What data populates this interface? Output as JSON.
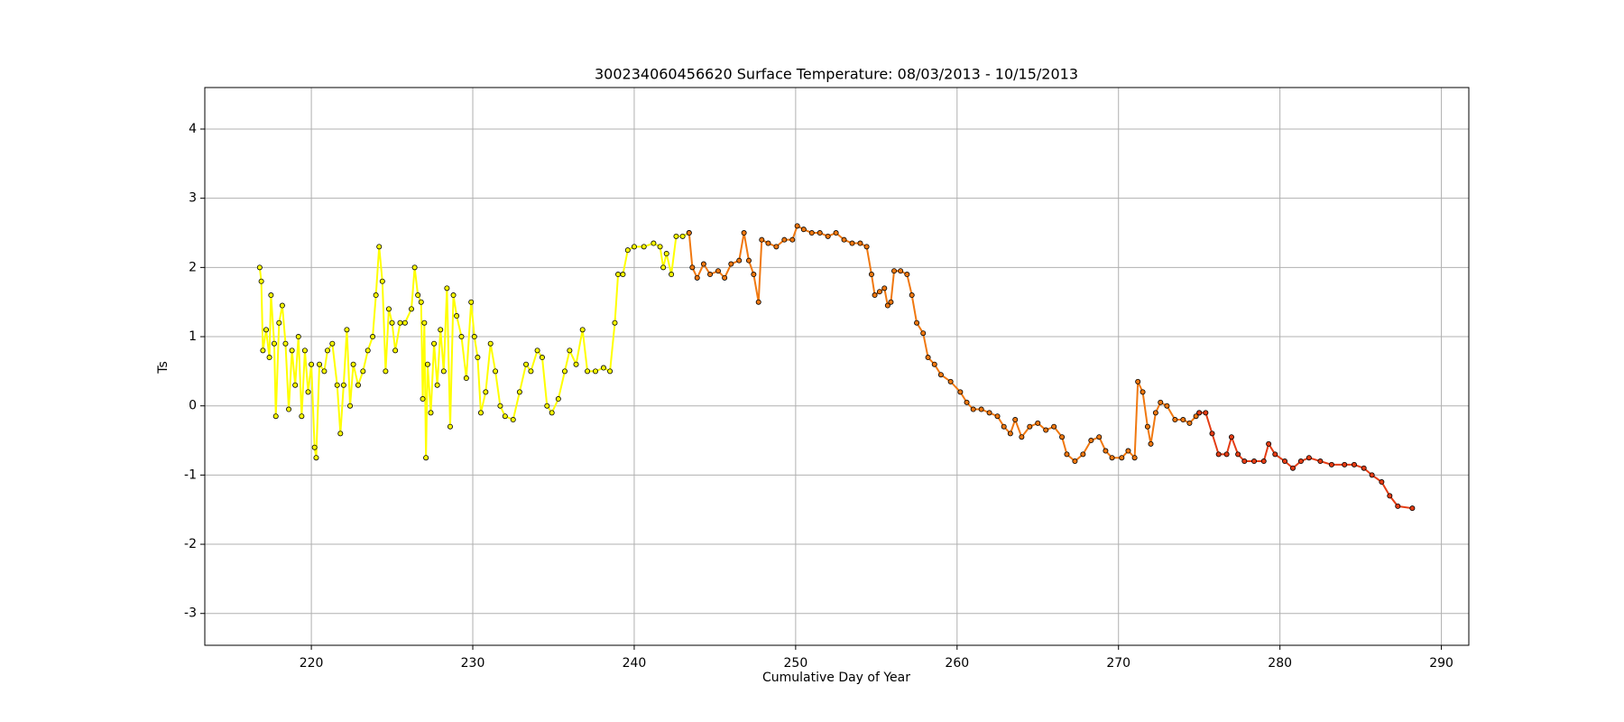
{
  "chart_data": {
    "type": "line",
    "title": "300234060456620 Surface Temperature: 08/03/2013 - 10/15/2013",
    "xlabel": "Cumulative Day of Year",
    "ylabel": "Ts",
    "xlim": [
      213.4,
      291.7
    ],
    "ylim": [
      -3.46,
      4.6
    ],
    "xticks": [
      220,
      230,
      240,
      250,
      260,
      270,
      280,
      290
    ],
    "yticks": [
      -3,
      -2,
      -1,
      0,
      1,
      2,
      3,
      4
    ],
    "grid": true,
    "markers": true,
    "series": [
      {
        "color": "#ffff00",
        "x": [
          216.8,
          216.9,
          217.0,
          217.2,
          217.4,
          217.5,
          217.7,
          217.8,
          218.0,
          218.2,
          218.4,
          218.6,
          218.8,
          219.0,
          219.2,
          219.4,
          219.6,
          219.8,
          220.0,
          220.2,
          220.3,
          220.5,
          220.8,
          221.0,
          221.3,
          221.6,
          221.8,
          222.0,
          222.2,
          222.4,
          222.6,
          222.9,
          223.2,
          223.5,
          223.8,
          224.0,
          224.2,
          224.4,
          224.6,
          224.8,
          225.0,
          225.2,
          225.5,
          225.8,
          226.2,
          226.4,
          226.6,
          226.8,
          226.9,
          227.0,
          227.1,
          227.2,
          227.4,
          227.6,
          227.8,
          228.0,
          228.2,
          228.4,
          228.6,
          228.8,
          229.0,
          229.3,
          229.6,
          229.9,
          230.1,
          230.3,
          230.5,
          230.8,
          231.1,
          231.4,
          231.7,
          232.0,
          232.5,
          232.9,
          233.3,
          233.6,
          234.0,
          234.3,
          234.6,
          234.9,
          235.3,
          235.7,
          236.0,
          236.4,
          236.8,
          237.1,
          237.6,
          238.1,
          238.5,
          238.8,
          239.0,
          239.3,
          239.6,
          240.0,
          240.6,
          241.2,
          241.6,
          241.8,
          242.0,
          242.3,
          242.6,
          243.0,
          243.4
        ],
        "values": [
          2.0,
          1.8,
          0.8,
          1.1,
          0.7,
          1.6,
          0.9,
          -0.15,
          1.2,
          1.45,
          0.9,
          -0.05,
          0.8,
          0.3,
          1.0,
          -0.15,
          0.8,
          0.2,
          0.6,
          -0.6,
          -0.75,
          0.6,
          0.5,
          0.8,
          0.9,
          0.3,
          -0.4,
          0.3,
          1.1,
          0.0,
          0.6,
          0.3,
          0.5,
          0.8,
          1.0,
          1.6,
          2.3,
          1.8,
          0.5,
          1.4,
          1.2,
          0.8,
          1.2,
          1.2,
          1.4,
          2.0,
          1.6,
          1.5,
          0.1,
          1.2,
          -0.75,
          0.6,
          -0.1,
          0.9,
          0.3,
          1.1,
          0.5,
          1.7,
          -0.3,
          1.6,
          1.3,
          1.0,
          0.4,
          1.5,
          1.0,
          0.7,
          -0.1,
          0.2,
          0.9,
          0.5,
          0.0,
          -0.15,
          -0.2,
          0.2,
          0.6,
          0.5,
          0.8,
          0.7,
          0.0,
          -0.1,
          0.1,
          0.5,
          0.8,
          0.6,
          1.1,
          0.5,
          0.5,
          0.55,
          0.5,
          1.2,
          1.9,
          1.9,
          2.25,
          2.3,
          2.3,
          2.35,
          2.3,
          2.0,
          2.2,
          1.9,
          2.45,
          2.45,
          2.5
        ]
      },
      {
        "color": "#f07810",
        "x": [
          243.4,
          243.6,
          243.9,
          244.3,
          244.7,
          245.2,
          245.6,
          246.0,
          246.5,
          246.8,
          247.1,
          247.4,
          247.7,
          247.9,
          248.3,
          248.8,
          249.3,
          249.8,
          250.1,
          250.5,
          251.0,
          251.5,
          252.0,
          252.5,
          253.0,
          253.5,
          254.0,
          254.4,
          254.7,
          254.9,
          255.2,
          255.5,
          255.7,
          255.9,
          256.1,
          256.5,
          256.9,
          257.2,
          257.5,
          257.9,
          258.2,
          258.6,
          259.0,
          259.6,
          260.2,
          260.6,
          261.0,
          261.5,
          262.0,
          262.5,
          262.9,
          263.3,
          263.6,
          264.0,
          264.5,
          265.0,
          265.5,
          266.0,
          266.5,
          266.8,
          267.3,
          267.8,
          268.3,
          268.8,
          269.2,
          269.6,
          270.2,
          270.6,
          271.0,
          271.2,
          271.5,
          271.8,
          272.0,
          272.3,
          272.6,
          273.0,
          273.5,
          274.0,
          274.4,
          274.8,
          275.0
        ],
        "values": [
          2.5,
          2.0,
          1.85,
          2.05,
          1.9,
          1.95,
          1.85,
          2.05,
          2.1,
          2.5,
          2.1,
          1.9,
          1.5,
          2.4,
          2.35,
          2.3,
          2.4,
          2.4,
          2.6,
          2.55,
          2.5,
          2.5,
          2.45,
          2.5,
          2.4,
          2.35,
          2.35,
          2.3,
          1.9,
          1.6,
          1.65,
          1.7,
          1.45,
          1.5,
          1.95,
          1.95,
          1.9,
          1.6,
          1.2,
          1.05,
          0.7,
          0.6,
          0.45,
          0.35,
          0.2,
          0.05,
          -0.05,
          -0.05,
          -0.1,
          -0.15,
          -0.3,
          -0.4,
          -0.2,
          -0.45,
          -0.3,
          -0.25,
          -0.35,
          -0.3,
          -0.45,
          -0.7,
          -0.8,
          -0.7,
          -0.5,
          -0.45,
          -0.65,
          -0.75,
          -0.75,
          -0.65,
          -0.75,
          0.35,
          0.2,
          -0.3,
          -0.55,
          -0.1,
          0.05,
          0.0,
          -0.2,
          -0.2,
          -0.25,
          -0.15,
          -0.1
        ]
      },
      {
        "color": "#e43c14",
        "x": [
          275.0,
          275.4,
          275.8,
          276.2,
          276.7,
          277.0,
          277.4,
          277.8,
          278.4,
          279.0,
          279.3,
          279.7,
          280.3,
          280.8,
          281.3,
          281.8,
          282.5,
          283.2,
          284.0,
          284.6,
          285.2,
          285.7,
          286.3,
          286.8,
          287.3,
          288.2
        ],
        "values": [
          -0.1,
          -0.1,
          -0.4,
          -0.7,
          -0.7,
          -0.45,
          -0.7,
          -0.8,
          -0.8,
          -0.8,
          -0.55,
          -0.7,
          -0.8,
          -0.9,
          -0.8,
          -0.75,
          -0.8,
          -0.85,
          -0.85,
          -0.85,
          -0.9,
          -1.0,
          -1.1,
          -1.3,
          -1.45,
          -1.48
        ]
      }
    ]
  }
}
